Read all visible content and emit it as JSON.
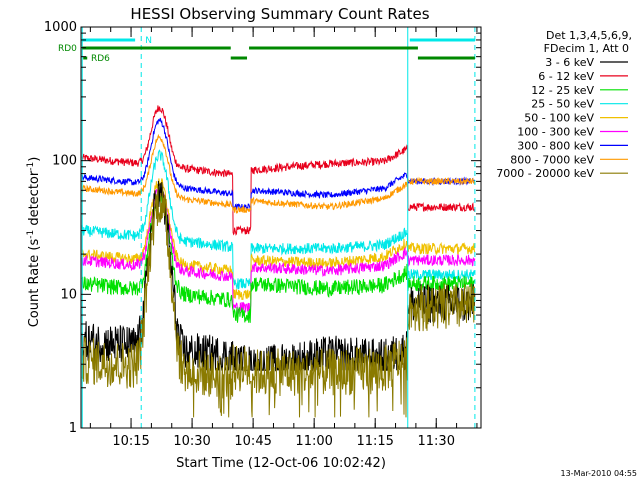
{
  "chart_data": {
    "type": "line",
    "title": "HESSI Observing Summary Count Rates",
    "xlabel": "Start Time (12-Oct-06 10:02:42)",
    "ylabel_main": "Count Rate (s",
    "ylabel_sup1": "-1",
    "ylabel_mid": " detector",
    "ylabel_sup2": "-1",
    "ylabel_end": ")",
    "yscale": "log",
    "xlim": [
      "10:02:42",
      "11:41:00"
    ],
    "ylim": [
      1,
      1000
    ],
    "x_ticks": [
      "10:15",
      "10:30",
      "10:45",
      "11:00",
      "11:15",
      "11:30"
    ],
    "y_ticks": [
      "1",
      "10",
      "100",
      "1000"
    ],
    "legend_header": [
      "Det 1,3,4,5,6,9,",
      "FDecim 1, Att 0"
    ],
    "legend_position": "right",
    "series": [
      {
        "name": "3 - 6 keV",
        "color": "#000000"
      },
      {
        "name": "6 - 12 keV",
        "color": "#e8001c"
      },
      {
        "name": "12 - 25 keV",
        "color": "#00e000"
      },
      {
        "name": "25 - 50 keV",
        "color": "#00e8e8"
      },
      {
        "name": "50 - 100 keV",
        "color": "#f0c000"
      },
      {
        "name": "100 - 300 keV",
        "color": "#ff00ff"
      },
      {
        "name": "300 - 800 keV",
        "color": "#0000ff"
      },
      {
        "name": "800 - 7000 keV",
        "color": "#ff9900"
      },
      {
        "name": "7000 - 20000 keV",
        "color": "#8a7a00"
      }
    ],
    "flag_labels": {
      "n": "N",
      "rd0": "RD0",
      "rd6": "RD6"
    },
    "footer_date": "13-Mar-2010 04:55"
  }
}
